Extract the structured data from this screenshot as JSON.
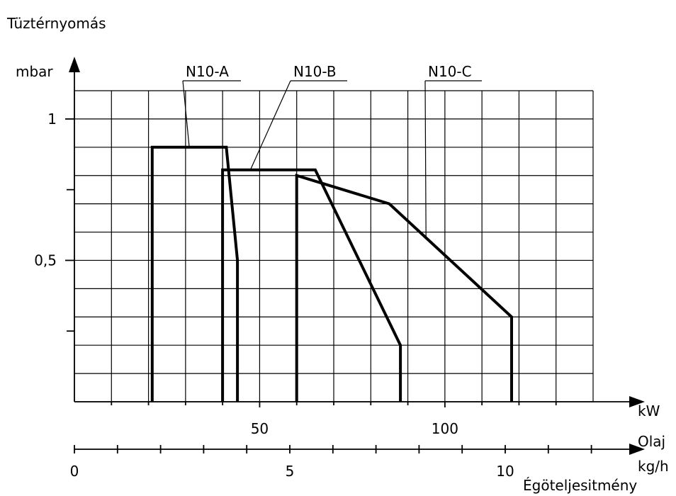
{
  "chart_data": {
    "type": "line",
    "title": "Tüztérnyomás",
    "ylabel": "mbar",
    "xlabel": "kW",
    "x2label": "Olaj",
    "x2unit": "kg/h",
    "footer": "Égöteljesitmény",
    "xlim": [
      0,
      140
    ],
    "ylim": [
      0,
      1.1
    ],
    "x2lim": [
      0,
      12
    ],
    "x_ticks": [
      50,
      100
    ],
    "x_ticks_minor": [
      10,
      20,
      30,
      40,
      60,
      70,
      80,
      90,
      110,
      120,
      130
    ],
    "y_ticks": [
      0.5,
      1
    ],
    "y_ticks_labels": [
      "0,5",
      "1"
    ],
    "y_ticks_minor": [
      0.25,
      0.75
    ],
    "x2_ticks": [
      0,
      5,
      10
    ],
    "x2_ticks_minor": [
      1,
      2,
      3,
      4,
      6,
      7,
      8,
      9,
      11,
      12
    ],
    "grid": true,
    "series": [
      {
        "name": "N10-A",
        "points": [
          [
            21,
            0
          ],
          [
            21,
            0.9
          ],
          [
            41,
            0.9
          ],
          [
            44,
            0.5
          ],
          [
            44,
            0
          ]
        ]
      },
      {
        "name": "N10-B",
        "points": [
          [
            40,
            0
          ],
          [
            40,
            0.82
          ],
          [
            65,
            0.82
          ],
          [
            88,
            0.2
          ],
          [
            88,
            0
          ]
        ]
      },
      {
        "name": "N10-C",
        "points": [
          [
            60,
            0
          ],
          [
            60,
            0.8
          ],
          [
            85,
            0.7
          ],
          [
            118,
            0.3
          ],
          [
            118,
            0
          ]
        ]
      }
    ]
  }
}
